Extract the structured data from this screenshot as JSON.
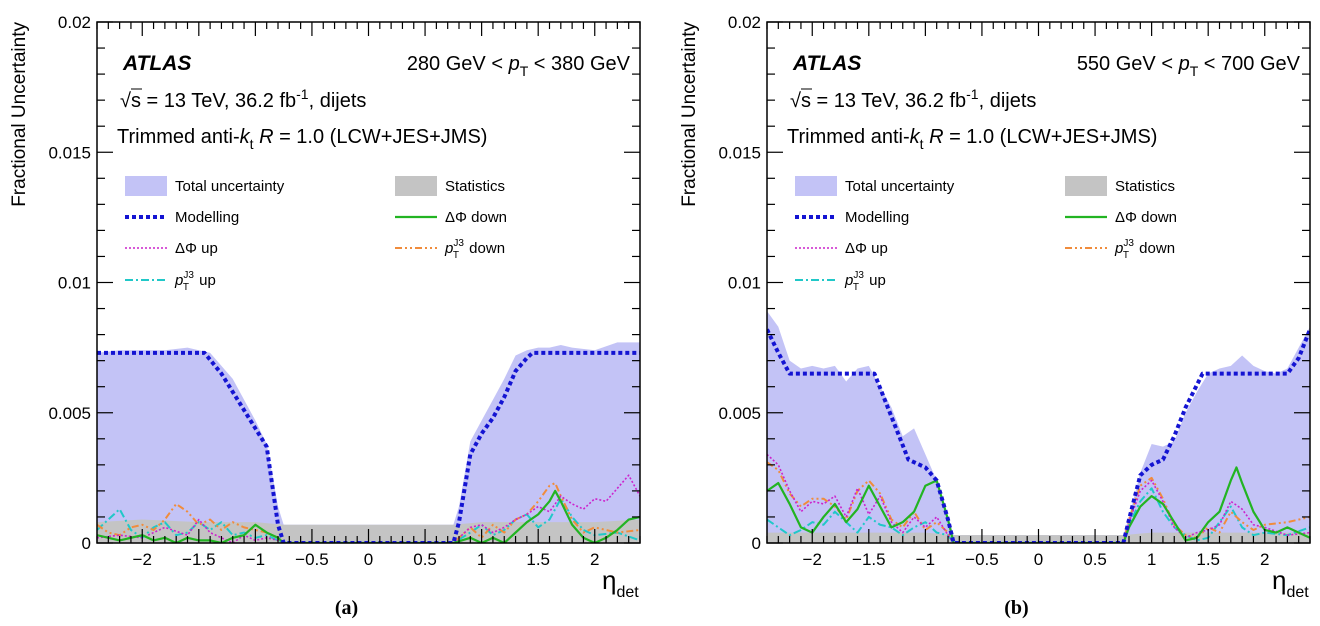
{
  "colors": {
    "total": "#c3c3f6",
    "stat": "#c4c4c4",
    "modelling": "#1414d2",
    "dphi_down": "#22b422",
    "dphi_up": "#cc22cc",
    "pt3_down": "#f08c3c",
    "pt3_up": "#20c8c8"
  },
  "chart_data": [
    {
      "type": "area",
      "sublabel": "(a)",
      "atlas_label": "ATLAS",
      "pt_range": {
        "low": "280 GeV < ",
        "var": "p",
        "sub": "T",
        "high": " < 380 GeV"
      },
      "energy_line": {
        "sqrt": "√",
        "s_part": "s = 13 TeV, 36.2 fb",
        "sup": "-1",
        "tail": ", dijets"
      },
      "jet_line": {
        "pre": "Trimmed anti-",
        "k": "k",
        "ksub": "t",
        "mid": " ",
        "R": "R",
        "post": " = 1.0 (LCW+JES+JMS)"
      },
      "ylabel": "Fractional Uncertainty",
      "xlabel": {
        "main": "η",
        "sub": "det"
      },
      "xlim": [
        -2.4,
        2.4
      ],
      "ylim": [
        0,
        0.02
      ],
      "xticks": [
        -2,
        -1.5,
        -1,
        -0.5,
        0,
        0.5,
        1,
        1.5,
        2
      ],
      "xtick_labels": [
        "−2",
        "−1.5",
        "−1",
        "−0.5",
        "0",
        "0.5",
        "1",
        "1.5",
        "2"
      ],
      "yticks": [
        0,
        0.005,
        0.01,
        0.015,
        0.02
      ],
      "ytick_labels": [
        "0",
        "0.005",
        "0.01",
        "0.015",
        "0.02"
      ],
      "legend": {
        "total": "Total uncertainty",
        "stat": "Statistics",
        "modelling": "Modelling",
        "dphi_down": "ΔΦ down",
        "dphi_up": "ΔΦ up",
        "pt3_down": "down",
        "pt3_up": "up",
        "pt3_var": "p",
        "pt3_sub": "T",
        "pt3_sup": "J3"
      },
      "series": {
        "total": {
          "x": [
            -2.4,
            -2.2,
            -2.0,
            -1.8,
            -1.6,
            -1.4,
            -1.2,
            -1.0,
            -0.9,
            -0.8,
            -0.75,
            0.75,
            0.8,
            0.9,
            1.0,
            1.1,
            1.2,
            1.3,
            1.4,
            1.5,
            1.6,
            1.7,
            1.8,
            2.0,
            2.2,
            2.4
          ],
          "y": [
            0.0073,
            0.0074,
            0.0074,
            0.0074,
            0.0075,
            0.0073,
            0.0063,
            0.0047,
            0.0038,
            0.0014,
            0.0007,
            0.0007,
            0.0014,
            0.0039,
            0.0047,
            0.0055,
            0.0063,
            0.0072,
            0.0074,
            0.0075,
            0.0075,
            0.0076,
            0.0075,
            0.0074,
            0.0077,
            0.0077
          ]
        },
        "stat": {
          "x": [
            -2.4,
            -2.0,
            -1.5,
            -1.0,
            -0.75,
            0.0,
            0.75,
            1.0,
            1.5,
            2.0,
            2.4
          ],
          "y": [
            0.0008,
            0.0009,
            0.0008,
            0.0008,
            0.0007,
            0.0007,
            0.0007,
            0.0008,
            0.0008,
            0.0008,
            0.0009
          ]
        },
        "modelling": {
          "x": [
            -2.4,
            -1.45,
            -1.3,
            -1.2,
            -1.1,
            -1.0,
            -0.9,
            -0.8,
            -0.75,
            0.75,
            0.8,
            0.9,
            1.0,
            1.1,
            1.2,
            1.3,
            1.4,
            1.45,
            2.4
          ],
          "y": [
            0.0073,
            0.0073,
            0.0065,
            0.0058,
            0.0051,
            0.0044,
            0.0037,
            0.0007,
            0.0,
            0.0,
            0.0008,
            0.0034,
            0.0042,
            0.0048,
            0.0056,
            0.0066,
            0.0071,
            0.0073,
            0.0073
          ]
        },
        "dphi_down": {
          "x": [
            -2.4,
            -2.2,
            -2.0,
            -1.9,
            -1.8,
            -1.7,
            -1.6,
            -1.5,
            -1.4,
            -1.3,
            -1.2,
            -1.1,
            -1.0,
            -0.9,
            -0.8,
            -0.75,
            0.75,
            0.9,
            1.0,
            1.1,
            1.2,
            1.3,
            1.4,
            1.5,
            1.6,
            1.65,
            1.7,
            1.8,
            1.9,
            2.0,
            2.1,
            2.2,
            2.3,
            2.4
          ],
          "y": [
            0.0003,
            0.0001,
            0.0003,
            0.0001,
            0.0002,
            0.0,
            0.0002,
            0.0001,
            0.0001,
            0.0,
            0.0002,
            0.0003,
            0.0007,
            0.0004,
            0.0002,
            0.0,
            0.0,
            0.0002,
            0.0,
            0.0002,
            0.0,
            0.0004,
            0.0008,
            0.0011,
            0.0016,
            0.002,
            0.0016,
            0.0007,
            0.0002,
            0.0,
            0.0002,
            0.0005,
            0.0009,
            0.001
          ]
        },
        "dphi_up": {
          "x": [
            -2.4,
            -2.2,
            -2.0,
            -1.8,
            -1.6,
            -1.5,
            -1.4,
            -1.3,
            -1.2,
            -1.1,
            -1.0,
            -0.9,
            -0.8,
            -0.75,
            0.75,
            0.9,
            1.0,
            1.1,
            1.2,
            1.3,
            1.4,
            1.5,
            1.6,
            1.7,
            1.8,
            1.9,
            2.0,
            2.1,
            2.2,
            2.3,
            2.4
          ],
          "y": [
            0.0002,
            0.0003,
            0.0002,
            0.0006,
            0.0003,
            0.0009,
            0.0004,
            0.0002,
            0.0,
            0.0003,
            0.0001,
            0.0002,
            0.0001,
            0.0,
            0.0,
            0.0006,
            0.0007,
            0.0004,
            0.0006,
            0.0009,
            0.0011,
            0.0014,
            0.0012,
            0.0018,
            0.0015,
            0.0013,
            0.0017,
            0.0016,
            0.0021,
            0.0026,
            0.0018
          ]
        },
        "pt3_down": {
          "x": [
            -2.4,
            -2.3,
            -2.2,
            -2.1,
            -2.0,
            -1.9,
            -1.8,
            -1.7,
            -1.6,
            -1.5,
            -1.4,
            -1.3,
            -1.2,
            -1.1,
            -1.0,
            -0.9,
            -0.8,
            -0.75,
            0.75,
            0.9,
            1.0,
            1.1,
            1.2,
            1.3,
            1.4,
            1.5,
            1.6,
            1.65,
            1.7,
            1.8,
            1.9,
            2.0,
            2.2,
            2.4
          ],
          "y": [
            0.0007,
            0.0004,
            0.0003,
            0.0006,
            0.0007,
            0.0005,
            0.0009,
            0.0015,
            0.0012,
            0.0007,
            0.0009,
            0.0005,
            0.0008,
            0.0006,
            0.0005,
            0.0004,
            0.0002,
            0.0,
            0.0,
            0.0006,
            0.0002,
            0.0007,
            0.0004,
            0.0009,
            0.0011,
            0.0016,
            0.0022,
            0.0023,
            0.0018,
            0.0009,
            0.0004,
            0.0006,
            0.0004,
            0.0005
          ]
        },
        "pt3_up": {
          "x": [
            -2.4,
            -2.3,
            -2.2,
            -2.1,
            -2.0,
            -1.9,
            -1.8,
            -1.7,
            -1.6,
            -1.5,
            -1.4,
            -1.3,
            -1.2,
            -1.1,
            -1.0,
            -0.9,
            -0.8,
            -0.75,
            0.75,
            0.9,
            1.0,
            1.1,
            1.2,
            1.3,
            1.4,
            1.5,
            1.6,
            1.7,
            1.8,
            1.9,
            2.0,
            2.2,
            2.4
          ],
          "y": [
            0.0005,
            0.0009,
            0.0013,
            0.0005,
            0.0002,
            0.0006,
            0.0008,
            0.0003,
            0.0004,
            0.0008,
            0.0005,
            0.0008,
            0.0003,
            0.0004,
            0.0002,
            0.0003,
            0.0001,
            0.0,
            0.0,
            0.0004,
            0.0007,
            0.0003,
            0.0005,
            0.0009,
            0.0011,
            0.0006,
            0.0009,
            0.0017,
            0.001,
            0.0005,
            0.0003,
            0.0004,
            0.0001
          ]
        }
      }
    },
    {
      "type": "area",
      "sublabel": "(b)",
      "atlas_label": "ATLAS",
      "pt_range": {
        "low": "550 GeV < ",
        "var": "p",
        "sub": "T",
        "high": " < 700 GeV"
      },
      "energy_line": {
        "sqrt": "√",
        "s_part": "s = 13 TeV, 36.2 fb",
        "sup": "-1",
        "tail": ", dijets"
      },
      "jet_line": {
        "pre": "Trimmed anti-",
        "k": "k",
        "ksub": "t",
        "mid": " ",
        "R": "R",
        "post": " = 1.0 (LCW+JES+JMS)"
      },
      "ylabel": "Fractional Uncertainty",
      "xlabel": {
        "main": "η",
        "sub": "det"
      },
      "xlim": [
        -2.4,
        2.4
      ],
      "ylim": [
        0,
        0.02
      ],
      "xticks": [
        -2,
        -1.5,
        -1,
        -0.5,
        0,
        0.5,
        1,
        1.5,
        2
      ],
      "xtick_labels": [
        "−2",
        "−1.5",
        "−1",
        "−0.5",
        "0",
        "0.5",
        "1",
        "1.5",
        "2"
      ],
      "yticks": [
        0,
        0.005,
        0.01,
        0.015,
        0.02
      ],
      "ytick_labels": [
        "0",
        "0.005",
        "0.01",
        "0.015",
        "0.02"
      ],
      "legend": {
        "total": "Total uncertainty",
        "stat": "Statistics",
        "modelling": "Modelling",
        "dphi_down": "ΔΦ down",
        "dphi_up": "ΔΦ up",
        "pt3_down": "down",
        "pt3_up": "up",
        "pt3_var": "p",
        "pt3_sub": "T",
        "pt3_sup": "J3"
      },
      "series": {
        "total": {
          "x": [
            -2.4,
            -2.3,
            -2.2,
            -2.1,
            -2.0,
            -1.9,
            -1.8,
            -1.7,
            -1.6,
            -1.5,
            -1.4,
            -1.3,
            -1.2,
            -1.1,
            -1.0,
            -0.9,
            -0.8,
            -0.75,
            0.75,
            0.8,
            0.9,
            1.0,
            1.1,
            1.2,
            1.3,
            1.4,
            1.5,
            1.6,
            1.7,
            1.8,
            1.9,
            2.0,
            2.1,
            2.2,
            2.3,
            2.4
          ],
          "y": [
            0.0089,
            0.0083,
            0.007,
            0.0067,
            0.0068,
            0.0067,
            0.0068,
            0.0062,
            0.0067,
            0.0068,
            0.006,
            0.0052,
            0.0041,
            0.0044,
            0.0034,
            0.0024,
            0.001,
            0.0003,
            0.0003,
            0.001,
            0.0027,
            0.0038,
            0.0037,
            0.0039,
            0.005,
            0.0058,
            0.0065,
            0.0067,
            0.0068,
            0.0072,
            0.0068,
            0.0066,
            0.0065,
            0.0067,
            0.0075,
            0.0083
          ]
        },
        "stat": {
          "x": [
            -2.4,
            -2.0,
            -1.5,
            -1.0,
            -0.75,
            0.0,
            0.75,
            1.0,
            1.5,
            2.0,
            2.4
          ],
          "y": [
            0.0004,
            0.0004,
            0.0004,
            0.0004,
            0.0003,
            0.0003,
            0.0003,
            0.0004,
            0.0004,
            0.0004,
            0.0004
          ]
        },
        "modelling": {
          "x": [
            -2.4,
            -2.3,
            -2.2,
            -1.45,
            -1.35,
            -1.25,
            -1.15,
            -1.0,
            -0.9,
            -0.8,
            -0.75,
            0.75,
            0.8,
            0.9,
            1.0,
            1.1,
            1.2,
            1.3,
            1.45,
            2.2,
            2.3,
            2.4
          ],
          "y": [
            0.0082,
            0.0073,
            0.0065,
            0.0065,
            0.0054,
            0.0043,
            0.0032,
            0.0029,
            0.0024,
            0.0009,
            0.0,
            0.0,
            0.0009,
            0.0026,
            0.003,
            0.0032,
            0.0041,
            0.0052,
            0.0065,
            0.0065,
            0.0071,
            0.0082
          ]
        },
        "dphi_down": {
          "x": [
            -2.4,
            -2.3,
            -2.2,
            -2.1,
            -2.0,
            -1.9,
            -1.8,
            -1.7,
            -1.6,
            -1.5,
            -1.4,
            -1.3,
            -1.2,
            -1.1,
            -1.0,
            -0.9,
            -0.8,
            -0.75,
            0.75,
            0.8,
            0.9,
            1.0,
            1.1,
            1.2,
            1.3,
            1.4,
            1.5,
            1.6,
            1.7,
            1.75,
            1.8,
            1.9,
            2.0,
            2.1,
            2.2,
            2.3,
            2.4
          ],
          "y": [
            0.002,
            0.0023,
            0.0015,
            0.0006,
            0.0004,
            0.001,
            0.0015,
            0.0008,
            0.0013,
            0.0022,
            0.0014,
            0.0006,
            0.0008,
            0.0012,
            0.0022,
            0.0024,
            0.0009,
            0.0,
            0.0,
            0.0006,
            0.0014,
            0.0018,
            0.0015,
            0.0008,
            0.0001,
            0.0002,
            0.0008,
            0.0012,
            0.0024,
            0.0029,
            0.0023,
            0.0012,
            0.0005,
            0.0004,
            0.0006,
            0.0004,
            0.0002
          ]
        },
        "dphi_up": {
          "x": [
            -2.4,
            -2.3,
            -2.2,
            -2.1,
            -2.0,
            -1.9,
            -1.8,
            -1.7,
            -1.6,
            -1.5,
            -1.4,
            -1.3,
            -1.2,
            -1.1,
            -1.0,
            -0.9,
            -0.8,
            -0.75,
            0.75,
            0.8,
            0.9,
            1.0,
            1.1,
            1.2,
            1.3,
            1.4,
            1.5,
            1.6,
            1.7,
            1.8,
            1.9,
            2.0,
            2.2,
            2.4
          ],
          "y": [
            0.0034,
            0.003,
            0.002,
            0.0012,
            0.0016,
            0.0015,
            0.0018,
            0.001,
            0.0021,
            0.0011,
            0.0018,
            0.0008,
            0.0004,
            0.001,
            0.0006,
            0.001,
            0.0003,
            0.0,
            0.0,
            0.0008,
            0.002,
            0.0024,
            0.0016,
            0.0006,
            0.0002,
            0.0004,
            0.0005,
            0.0007,
            0.0016,
            0.0013,
            0.0007,
            0.0006,
            0.0003,
            0.0004
          ]
        },
        "pt3_down": {
          "x": [
            -2.4,
            -2.3,
            -2.2,
            -2.1,
            -2.0,
            -1.9,
            -1.8,
            -1.7,
            -1.6,
            -1.5,
            -1.4,
            -1.3,
            -1.2,
            -1.1,
            -1.0,
            -0.9,
            -0.8,
            -0.75,
            0.75,
            0.8,
            0.9,
            1.0,
            1.1,
            1.2,
            1.3,
            1.4,
            1.5,
            1.6,
            1.7,
            1.8,
            1.9,
            2.0,
            2.2,
            2.4
          ],
          "y": [
            0.0031,
            0.0028,
            0.0019,
            0.0014,
            0.0017,
            0.0017,
            0.0014,
            0.0009,
            0.002,
            0.0024,
            0.0019,
            0.0009,
            0.0006,
            0.0012,
            0.0005,
            0.0008,
            0.0004,
            0.0,
            0.0,
            0.0009,
            0.0022,
            0.0025,
            0.0017,
            0.0007,
            0.0003,
            0.0002,
            0.0006,
            0.0004,
            0.0012,
            0.0008,
            0.0005,
            0.0007,
            0.0008,
            0.001
          ]
        },
        "pt3_up": {
          "x": [
            -2.4,
            -2.3,
            -2.2,
            -2.1,
            -2.0,
            -1.9,
            -1.8,
            -1.7,
            -1.6,
            -1.5,
            -1.4,
            -1.3,
            -1.2,
            -1.1,
            -1.0,
            -0.9,
            -0.8,
            -0.75,
            0.75,
            0.8,
            0.9,
            1.0,
            1.1,
            1.2,
            1.3,
            1.4,
            1.5,
            1.6,
            1.7,
            1.8,
            1.9,
            2.0,
            2.2,
            2.4
          ],
          "y": [
            0.0009,
            0.0006,
            0.0003,
            0.0005,
            0.0008,
            0.0007,
            0.0012,
            0.0008,
            0.0004,
            0.001,
            0.0007,
            0.0006,
            0.0003,
            0.0006,
            0.0008,
            0.0004,
            0.0003,
            0.0,
            0.0,
            0.0007,
            0.0016,
            0.0021,
            0.0012,
            0.0006,
            0.0003,
            0.0001,
            0.0002,
            0.0008,
            0.0014,
            0.0006,
            0.0003,
            0.0004,
            0.0003,
            0.0006
          ]
        }
      }
    }
  ]
}
